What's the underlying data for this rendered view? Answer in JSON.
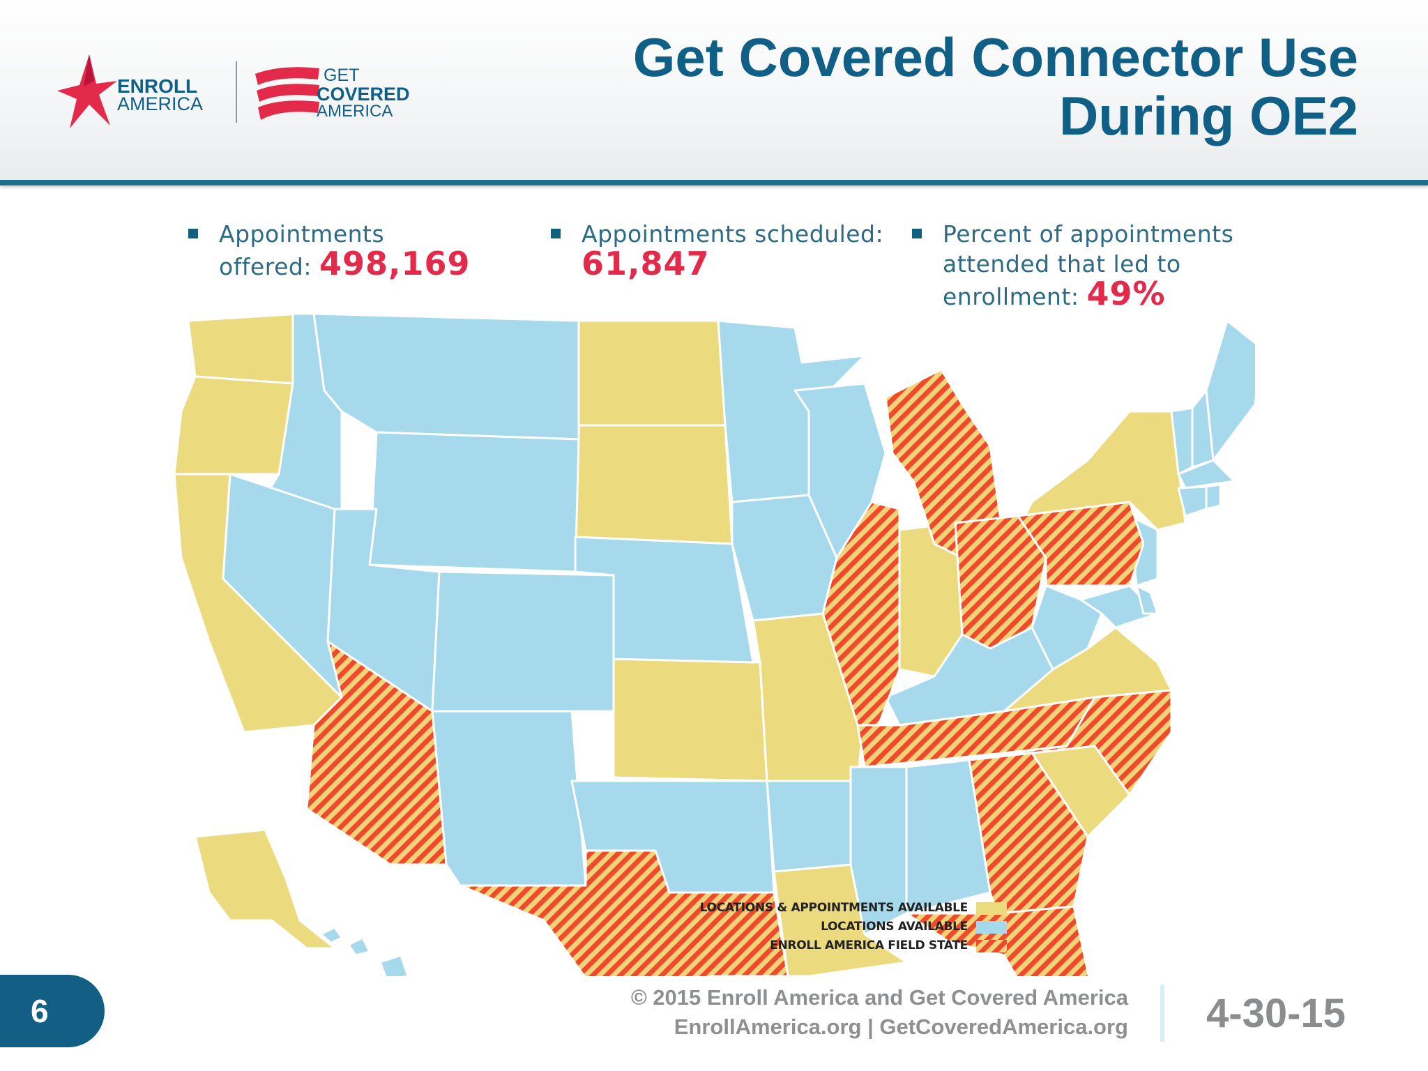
{
  "header": {
    "title_line1": "Get Covered Connector Use",
    "title_line2": "During OE2",
    "logo_enroll": {
      "line1": "ENROLL",
      "line2": "AMERICA"
    },
    "logo_getcovered": {
      "line1": "GET",
      "line2": "COVERED",
      "line3": "AMERICA"
    }
  },
  "stats": [
    {
      "label_line1": "Appointments",
      "label_line2": "offered:",
      "value": "498,169"
    },
    {
      "label_line1": "Appointments scheduled:",
      "value": "61,847"
    },
    {
      "label_line1": "Percent of appointments",
      "label_line2": "attended that led to",
      "label_line3": "enrollment:",
      "value": "49%"
    }
  ],
  "legend": [
    {
      "label": "LOCATIONS & APPOINTMENTS AVAILABLE",
      "key": "yellow"
    },
    {
      "label": "LOCATIONS AVAILABLE",
      "key": "blue"
    },
    {
      "label": "ENROLL AMERICA FIELD STATE",
      "key": "hatch"
    }
  ],
  "colors": {
    "yellow": "#ecda7e",
    "blue": "#a6d9ec",
    "hatch_red": "#ee4a2b",
    "accent_red": "#e42a4a",
    "title_blue": "#0f5f86"
  },
  "map_data": {
    "yellow": [
      "WA",
      "OR",
      "CA",
      "ND",
      "SD",
      "KS",
      "MO",
      "IN",
      "NY",
      "VA",
      "SC",
      "LA",
      "AK"
    ],
    "blue": [
      "ID",
      "MT",
      "WY",
      "NV",
      "UT",
      "CO",
      "NM",
      "NE",
      "OK",
      "MN",
      "IA",
      "WI",
      "AR",
      "MS",
      "AL",
      "KY",
      "WV",
      "MD",
      "DE",
      "NJ",
      "VT",
      "NH",
      "ME",
      "MA",
      "CT",
      "RI",
      "HI"
    ],
    "hatch": [
      "AZ",
      "TX",
      "IL",
      "MI",
      "OH",
      "PA",
      "TN",
      "NC",
      "GA",
      "FL"
    ]
  },
  "footer": {
    "page_number": "6",
    "copyright": "© 2015 Enroll America and Get Covered America",
    "websites": "EnrollAmerica.org | GetCoveredAmerica.org",
    "date": "4-30-15"
  }
}
